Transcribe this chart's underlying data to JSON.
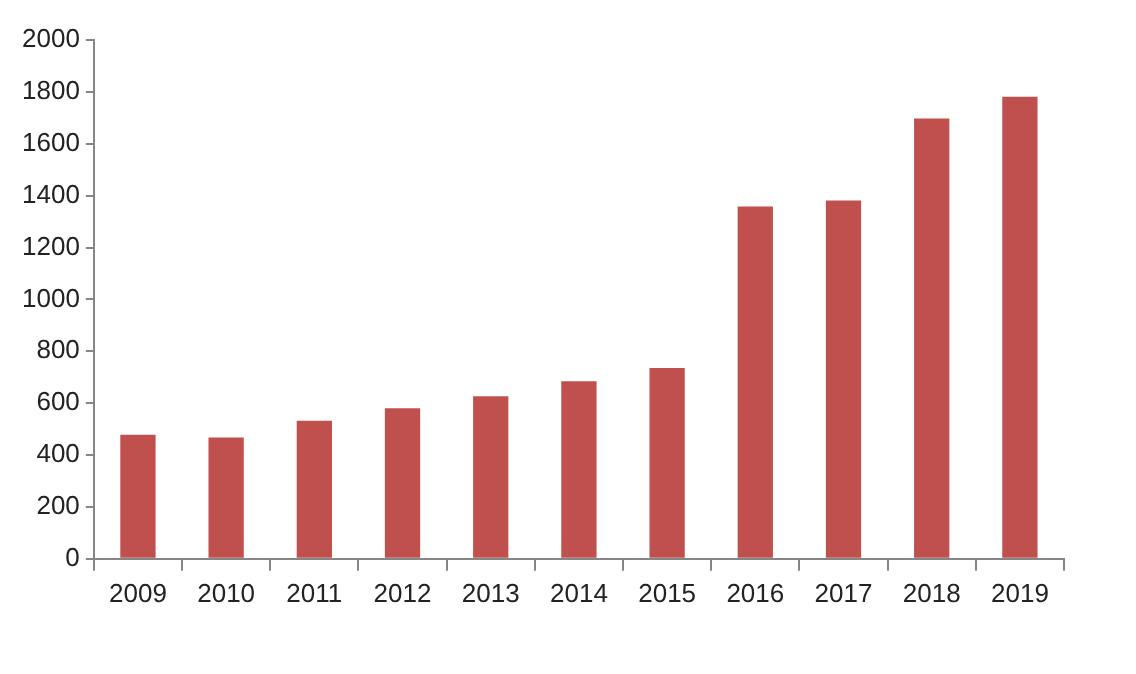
{
  "chart_data": {
    "type": "bar",
    "categories": [
      "2009",
      "2010",
      "2011",
      "2012",
      "2013",
      "2014",
      "2015",
      "2016",
      "2017",
      "2018",
      "2019"
    ],
    "values": [
      478,
      468,
      532,
      580,
      627,
      684,
      736,
      1358,
      1381,
      1697,
      1781
    ],
    "color": "#c0504d",
    "ylim": [
      0,
      2000
    ],
    "yticks": [
      0,
      200,
      400,
      600,
      800,
      1000,
      1200,
      1400,
      1600,
      1800,
      2000
    ],
    "grid": false,
    "legend": false
  }
}
